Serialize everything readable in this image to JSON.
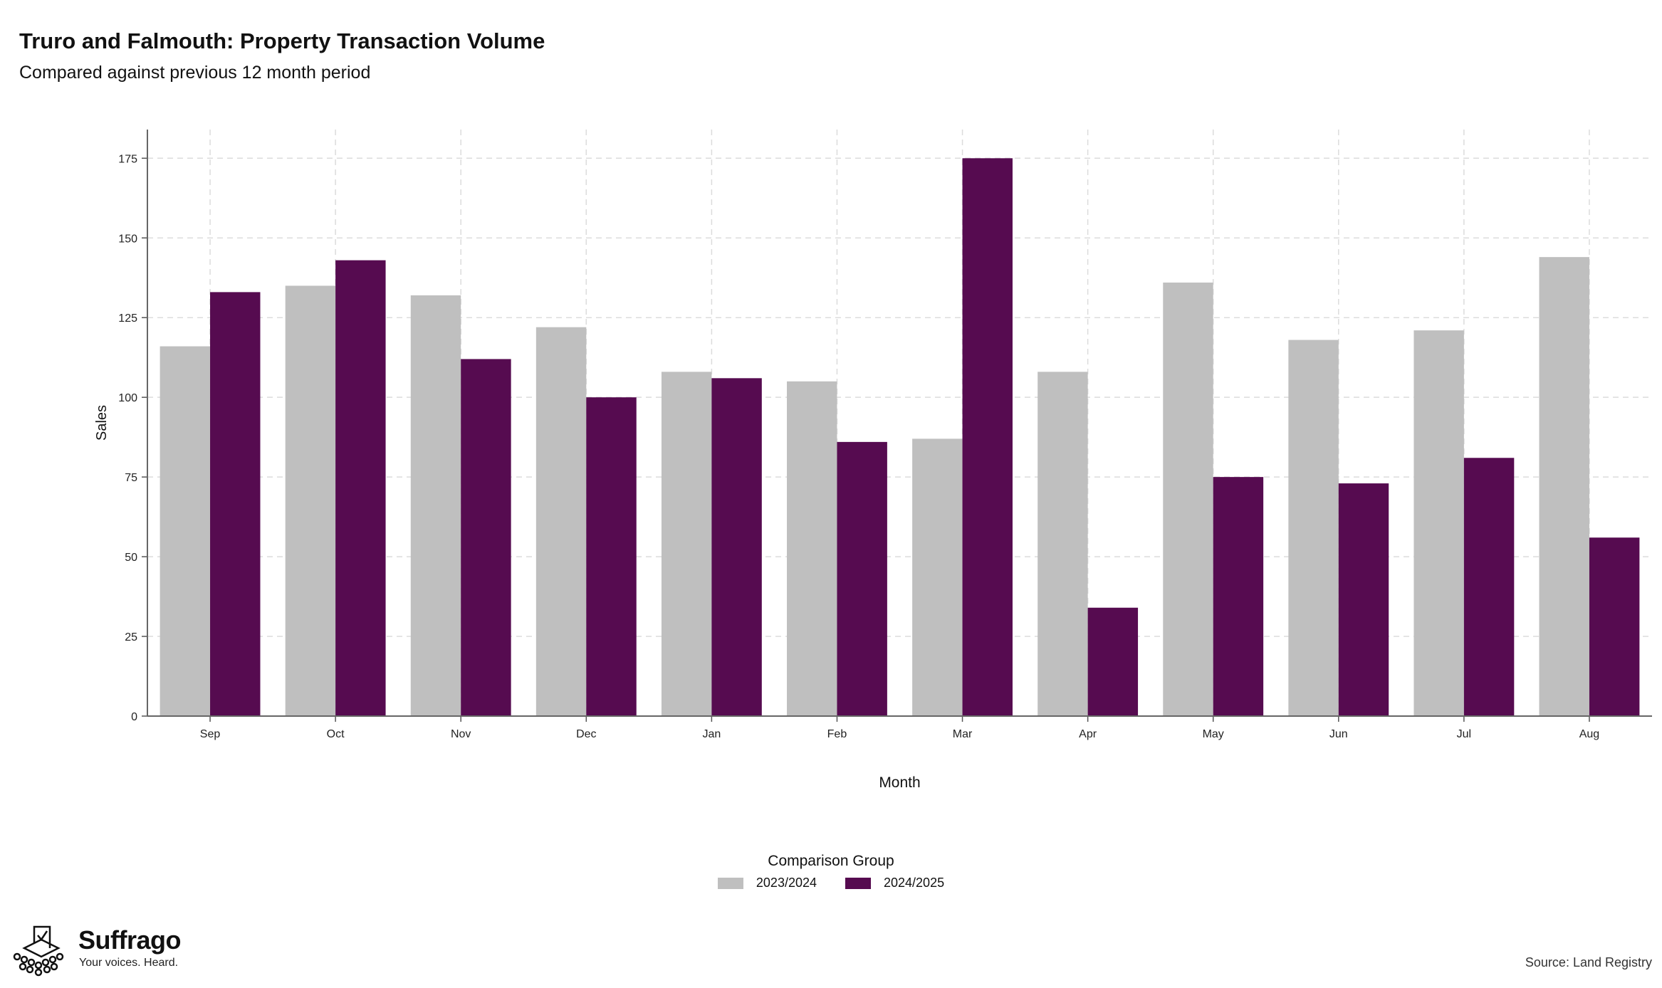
{
  "header": {
    "title": "Truro and Falmouth: Property Transaction Volume",
    "subtitle": "Compared against previous 12 month period"
  },
  "chart_data": {
    "type": "bar",
    "categories": [
      "Sep",
      "Oct",
      "Nov",
      "Dec",
      "Jan",
      "Feb",
      "Mar",
      "Apr",
      "May",
      "Jun",
      "Jul",
      "Aug"
    ],
    "series": [
      {
        "name": "2023/2024",
        "color": "#bfbfbf",
        "values": [
          116,
          135,
          132,
          122,
          108,
          105,
          87,
          108,
          136,
          118,
          121,
          144
        ]
      },
      {
        "name": "2024/2025",
        "color": "#560b50",
        "values": [
          133,
          143,
          112,
          100,
          106,
          86,
          175,
          34,
          75,
          73,
          81,
          56
        ]
      }
    ],
    "xlabel": "Month",
    "ylabel": "Sales",
    "ylim": [
      0,
      184
    ],
    "yticks": [
      0,
      25,
      50,
      75,
      100,
      125,
      150,
      175
    ],
    "grid": true,
    "legend_title": "Comparison Group",
    "legend_position": "bottom"
  },
  "footer": {
    "logo_name": "Suffrago",
    "logo_tagline": "Your voices. Heard.",
    "source": "Source: Land Registry"
  }
}
